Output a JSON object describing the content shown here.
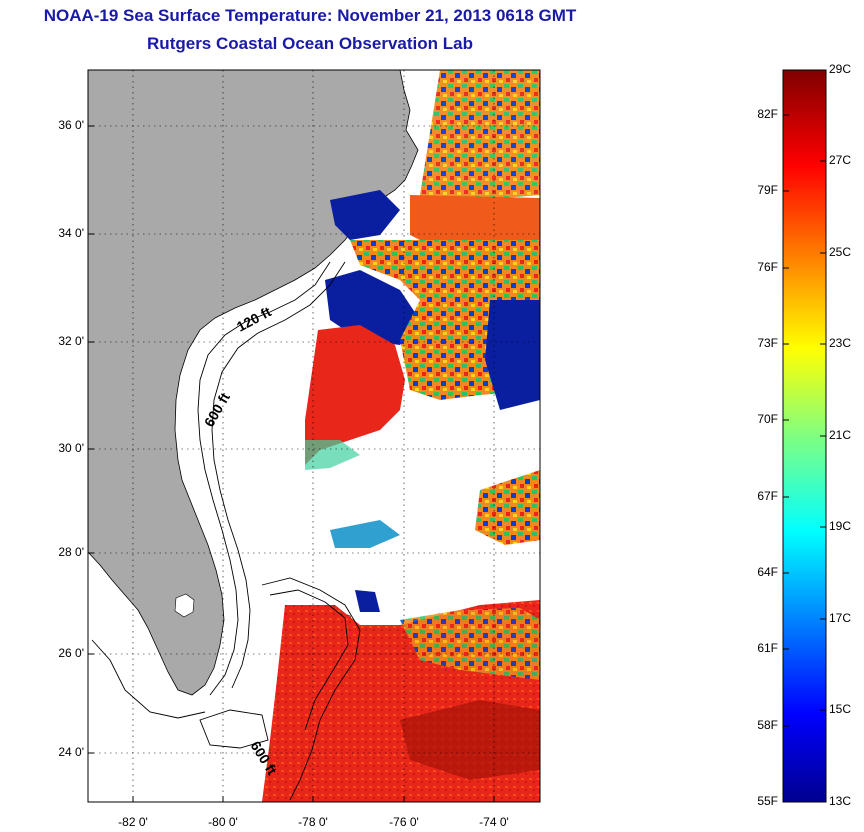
{
  "title": {
    "line1": "NOAA-19 Sea Surface Temperature:  November 21, 2013 0618 GMT",
    "line2": "Rutgers Coastal Ocean Observation Lab"
  },
  "axes": {
    "lat_ticks": [
      "36 0'",
      "34 0'",
      "32 0'",
      "30 0'",
      "28 0'",
      "26 0'",
      "24 0'"
    ],
    "lon_ticks": [
      "-82 0'",
      "-80 0'",
      "-78 0'",
      "-76 0'",
      "-74 0'"
    ],
    "lat_values": [
      36,
      34,
      32,
      30,
      28,
      26,
      24
    ],
    "lon_values": [
      -82,
      -80,
      -78,
      -76,
      -74
    ],
    "lat_range": [
      23,
      37
    ],
    "lon_range": [
      -83,
      -73
    ]
  },
  "contours": {
    "label_120": "120 ft",
    "label_600a": "600 ft",
    "label_600b": "600 ft"
  },
  "colorbar": {
    "fahrenheit": [
      "82F",
      "79F",
      "76F",
      "73F",
      "70F",
      "67F",
      "64F",
      "61F",
      "58F",
      "55F"
    ],
    "celsius": [
      "29C",
      "27C",
      "25C",
      "23C",
      "21C",
      "19C",
      "17C",
      "15C",
      "13C"
    ],
    "range_c": [
      13,
      29
    ]
  },
  "colors": {
    "land": "#a9a9a9",
    "title": "#1a1aa8",
    "warm": "#e8261a",
    "cold": "#0a1fa0"
  }
}
